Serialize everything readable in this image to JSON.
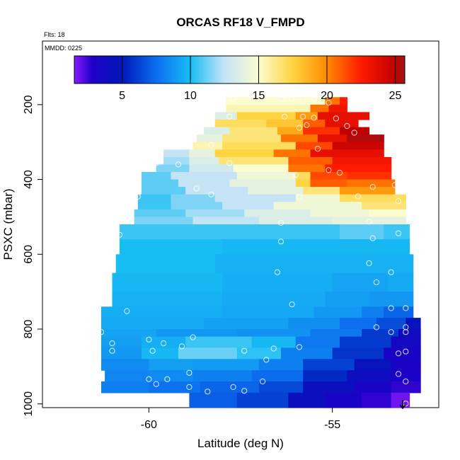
{
  "chart_data": {
    "type": "heatmap",
    "title": "ORCAS RF18 V_FMPD",
    "subtitle": "Flts: 18",
    "annotation": "MMDD: 0225",
    "xlabel": "Latitude (deg N)",
    "ylabel": "PSXC (mbar)",
    "xlim": [
      -62.9,
      -52.1
    ],
    "ylim": [
      1010,
      30
    ],
    "x_ticks": [
      -60,
      -55
    ],
    "x_tick_labels": [
      "-60",
      "-55"
    ],
    "y_ticks": [
      200,
      400,
      600,
      800,
      1000
    ],
    "y_tick_labels": [
      "200",
      "400",
      "600",
      "800",
      "1000"
    ],
    "colorbar": {
      "range": [
        1.5,
        25.7
      ],
      "ticks": [
        5,
        10,
        15,
        20,
        25
      ],
      "tick_labels": [
        "5",
        "10",
        "15",
        "20",
        "25"
      ],
      "stops": [
        {
          "v": 1.5,
          "c": "#8a1aff"
        },
        {
          "v": 2.8,
          "c": "#1e00c8"
        },
        {
          "v": 5.0,
          "c": "#0018b8"
        },
        {
          "v": 7.5,
          "c": "#0b6ff0"
        },
        {
          "v": 10.0,
          "c": "#18bdf4"
        },
        {
          "v": 12.5,
          "c": "#c4e4f6"
        },
        {
          "v": 15.0,
          "c": "#fbfccf"
        },
        {
          "v": 17.5,
          "c": "#ffd440"
        },
        {
          "v": 20.0,
          "c": "#ff8a00"
        },
        {
          "v": 22.5,
          "c": "#ff1a00"
        },
        {
          "v": 25.0,
          "c": "#c00000"
        },
        {
          "v": 25.7,
          "c": "#9e1818"
        }
      ]
    },
    "bands": [
      {
        "p": 180,
        "segments": [
          [
            -57.9,
            -55.2,
            15.0
          ],
          [
            -55.2,
            -54.8,
            20.5
          ],
          [
            -54.8,
            -54.6,
            22.5
          ]
        ]
      },
      {
        "p": 200,
        "segments": [
          [
            -57.9,
            -55.6,
            15.5
          ],
          [
            -55.6,
            -55.1,
            20.5
          ],
          [
            -55.1,
            -54.6,
            23.0
          ]
        ]
      },
      {
        "p": 220,
        "segments": [
          [
            -58.2,
            -57.6,
            13.5
          ],
          [
            -57.6,
            -56.0,
            17.5
          ],
          [
            -56.0,
            -55.4,
            19.5
          ],
          [
            -55.4,
            -54.0,
            23.5
          ]
        ]
      },
      {
        "p": 240,
        "segments": [
          [
            -58.2,
            -56.8,
            17.0
          ],
          [
            -56.8,
            -55.8,
            18.0
          ],
          [
            -55.8,
            -55.2,
            21.0
          ],
          [
            -55.2,
            -54.3,
            23.5
          ]
        ]
      },
      {
        "p": 260,
        "segments": [
          [
            -58.5,
            -57.8,
            13.5
          ],
          [
            -57.8,
            -56.5,
            16.5
          ],
          [
            -56.5,
            -55.8,
            19.0
          ],
          [
            -55.8,
            -54.8,
            22.0
          ],
          [
            -54.8,
            -54.0,
            25.0
          ]
        ]
      },
      {
        "p": 280,
        "segments": [
          [
            -58.7,
            -58.0,
            14.0
          ],
          [
            -58.0,
            -56.4,
            16.5
          ],
          [
            -56.4,
            -55.4,
            20.5
          ],
          [
            -55.4,
            -54.6,
            23.5
          ],
          [
            -54.6,
            -53.6,
            25.3
          ]
        ]
      },
      {
        "p": 300,
        "segments": [
          [
            -58.8,
            -58.0,
            15.5
          ],
          [
            -58.0,
            -56.0,
            17.0
          ],
          [
            -56.0,
            -55.0,
            21.5
          ],
          [
            -55.0,
            -53.6,
            24.5
          ]
        ]
      },
      {
        "p": 320,
        "segments": [
          [
            -59.6,
            -58.9,
            12.5
          ],
          [
            -58.9,
            -58.2,
            14.0
          ],
          [
            -58.2,
            -56.6,
            17.5
          ],
          [
            -56.6,
            -55.6,
            20.5
          ],
          [
            -55.6,
            -53.6,
            23.5
          ]
        ]
      },
      {
        "p": 340,
        "segments": [
          [
            -59.6,
            -58.9,
            12.0
          ],
          [
            -58.9,
            -58.1,
            13.5
          ],
          [
            -58.1,
            -56.2,
            16.5
          ],
          [
            -56.2,
            -55.0,
            21.0
          ],
          [
            -55.0,
            -53.4,
            23.0
          ]
        ]
      },
      {
        "p": 360,
        "segments": [
          [
            -59.8,
            -58.9,
            11.5
          ],
          [
            -58.9,
            -57.7,
            13.0
          ],
          [
            -57.7,
            -56.2,
            15.0
          ],
          [
            -56.2,
            -55.2,
            20.5
          ],
          [
            -55.2,
            -53.4,
            22.5
          ]
        ]
      },
      {
        "p": 380,
        "segments": [
          [
            -60.2,
            -59.4,
            11.0
          ],
          [
            -59.4,
            -57.6,
            12.5
          ],
          [
            -57.6,
            -56.0,
            14.5
          ],
          [
            -56.0,
            -55.6,
            17.0
          ],
          [
            -55.6,
            -54.6,
            21.5
          ],
          [
            -54.6,
            -53.4,
            22.0
          ]
        ]
      },
      {
        "p": 400,
        "segments": [
          [
            -60.2,
            -59.2,
            11.0
          ],
          [
            -59.2,
            -57.8,
            12.5
          ],
          [
            -57.8,
            -56.0,
            14.0
          ],
          [
            -56.0,
            -55.6,
            17.5
          ],
          [
            -55.6,
            -54.6,
            21.0
          ],
          [
            -54.6,
            -53.3,
            20.5
          ]
        ]
      },
      {
        "p": 420,
        "segments": [
          [
            -60.2,
            -59.0,
            11.0
          ],
          [
            -59.0,
            -57.3,
            12.5
          ],
          [
            -57.3,
            -55.8,
            14.0
          ],
          [
            -55.8,
            -54.8,
            16.5
          ],
          [
            -54.8,
            -53.3,
            19.5
          ]
        ]
      },
      {
        "p": 440,
        "segments": [
          [
            -60.3,
            -59.4,
            10.5
          ],
          [
            -59.4,
            -58.2,
            11.5
          ],
          [
            -58.2,
            -56.0,
            12.5
          ],
          [
            -56.0,
            -54.8,
            14.5
          ],
          [
            -54.8,
            -53.0,
            17.0
          ]
        ]
      },
      {
        "p": 460,
        "segments": [
          [
            -60.3,
            -59.4,
            10.5
          ],
          [
            -59.4,
            -58.0,
            11.5
          ],
          [
            -58.0,
            -56.6,
            12.5
          ],
          [
            -56.6,
            -54.2,
            14.5
          ],
          [
            -54.2,
            -53.0,
            16.5
          ]
        ]
      },
      {
        "p": 480,
        "segments": [
          [
            -60.4,
            -59.0,
            11.0
          ],
          [
            -59.0,
            -57.4,
            12.0
          ],
          [
            -57.4,
            -55.6,
            13.5
          ],
          [
            -55.6,
            -54.0,
            14.5
          ],
          [
            -54.0,
            -53.0,
            15.0
          ]
        ]
      },
      {
        "p": 500,
        "segments": [
          [
            -60.4,
            -58.8,
            11.5
          ],
          [
            -58.8,
            -57.0,
            12.5
          ],
          [
            -57.0,
            -55.0,
            13.5
          ],
          [
            -55.0,
            -53.0,
            14.0
          ]
        ]
      },
      {
        "p": 520,
        "segments": [
          [
            -60.8,
            -59.2,
            10.5
          ],
          [
            -59.2,
            -57.0,
            10.5
          ],
          [
            -57.0,
            -54.8,
            10.5
          ],
          [
            -54.8,
            -53.6,
            11.0
          ],
          [
            -53.6,
            -52.9,
            10.5
          ]
        ]
      },
      {
        "p": 560,
        "segments": [
          [
            -60.8,
            -58.0,
            10.0
          ],
          [
            -58.0,
            -55.0,
            9.8
          ],
          [
            -55.0,
            -52.9,
            9.8
          ]
        ]
      },
      {
        "p": 600,
        "segments": [
          [
            -60.9,
            -58.2,
            10.0
          ],
          [
            -58.2,
            -55.5,
            9.6
          ],
          [
            -55.5,
            -52.8,
            9.6
          ]
        ]
      },
      {
        "p": 650,
        "segments": [
          [
            -61.0,
            -58.0,
            9.8
          ],
          [
            -58.0,
            -55.0,
            9.5
          ],
          [
            -55.0,
            -53.5,
            9.2
          ],
          [
            -53.5,
            -52.8,
            9.4
          ]
        ]
      },
      {
        "p": 700,
        "segments": [
          [
            -61.0,
            -58.0,
            9.6
          ],
          [
            -58.0,
            -55.2,
            9.4
          ],
          [
            -55.2,
            -54.0,
            9.0
          ],
          [
            -54.0,
            -52.8,
            8.8
          ]
        ]
      },
      {
        "p": 740,
        "segments": [
          [
            -61.3,
            -58.0,
            9.5
          ],
          [
            -58.0,
            -55.5,
            9.3
          ],
          [
            -55.5,
            -54.2,
            8.8
          ],
          [
            -54.2,
            -53.6,
            8.0
          ],
          [
            -53.6,
            -52.8,
            7.2
          ]
        ]
      },
      {
        "p": 770,
        "segments": [
          [
            -61.3,
            -58.5,
            9.4
          ],
          [
            -58.5,
            -56.2,
            9.1
          ],
          [
            -56.2,
            -54.8,
            8.5
          ],
          [
            -54.8,
            -53.8,
            7.5
          ],
          [
            -53.8,
            -53.0,
            6.5
          ],
          [
            -53.0,
            -52.6,
            4.5
          ]
        ]
      },
      {
        "p": 800,
        "segments": [
          [
            -61.3,
            -59.8,
            9.2
          ],
          [
            -59.8,
            -57.6,
            8.8
          ],
          [
            -57.6,
            -55.6,
            8.6
          ],
          [
            -55.6,
            -54.2,
            7.8
          ],
          [
            -54.2,
            -53.2,
            6.0
          ],
          [
            -53.2,
            -52.6,
            3.8
          ]
        ]
      },
      {
        "p": 820,
        "segments": [
          [
            -61.3,
            -60.2,
            9.0
          ],
          [
            -60.2,
            -59.0,
            9.5
          ],
          [
            -59.0,
            -57.2,
            10.5
          ],
          [
            -57.2,
            -56.0,
            9.8
          ],
          [
            -56.0,
            -54.8,
            7.8
          ],
          [
            -54.8,
            -53.4,
            6.0
          ],
          [
            -53.4,
            -52.6,
            3.5
          ]
        ]
      },
      {
        "p": 850,
        "segments": [
          [
            -61.3,
            -60.2,
            8.8
          ],
          [
            -60.2,
            -59.2,
            9.8
          ],
          [
            -59.2,
            -57.6,
            11.2
          ],
          [
            -57.6,
            -56.4,
            10.3
          ],
          [
            -56.4,
            -55.0,
            8.0
          ],
          [
            -55.0,
            -53.6,
            5.8
          ],
          [
            -53.6,
            -52.6,
            3.2
          ]
        ]
      },
      {
        "p": 880,
        "segments": [
          [
            -61.3,
            -60.0,
            8.4
          ],
          [
            -60.0,
            -58.8,
            9.0
          ],
          [
            -58.8,
            -57.0,
            8.9
          ],
          [
            -57.0,
            -55.8,
            8.0
          ],
          [
            -55.8,
            -54.4,
            6.2
          ],
          [
            -54.4,
            -53.4,
            4.5
          ],
          [
            -53.4,
            -52.6,
            3.2
          ]
        ]
      },
      {
        "p": 910,
        "segments": [
          [
            -61.2,
            -60.0,
            8.2
          ],
          [
            -60.0,
            -58.8,
            8.4
          ],
          [
            -58.8,
            -57.2,
            8.0
          ],
          [
            -57.2,
            -55.8,
            7.4
          ],
          [
            -55.8,
            -54.6,
            5.5
          ],
          [
            -54.6,
            -53.4,
            4.0
          ],
          [
            -53.4,
            -52.6,
            3.0
          ]
        ]
      },
      {
        "p": 940,
        "segments": [
          [
            -61.3,
            -60.0,
            8.0
          ],
          [
            -60.0,
            -58.6,
            7.6
          ],
          [
            -58.6,
            -57.0,
            7.2
          ],
          [
            -57.0,
            -55.8,
            6.4
          ],
          [
            -55.8,
            -54.4,
            4.2
          ],
          [
            -54.4,
            -53.4,
            3.2
          ],
          [
            -53.4,
            -52.6,
            2.6
          ]
        ]
      },
      {
        "p": 970,
        "segments": [
          [
            -58.9,
            -57.6,
            7.0
          ],
          [
            -57.6,
            -56.2,
            6.2
          ],
          [
            -56.2,
            -55.2,
            4.2
          ],
          [
            -55.2,
            -54.2,
            3.2
          ],
          [
            -54.2,
            -53.4,
            2.6
          ],
          [
            -53.4,
            -52.9,
            1.8
          ]
        ]
      },
      {
        "p": 1010
      }
    ],
    "data_points": [
      [
        -57.7,
        185
      ],
      [
        -57.2,
        185
      ],
      [
        -56.9,
        185
      ],
      [
        -56.4,
        185
      ],
      [
        -56.1,
        185
      ],
      [
        -55.8,
        190
      ],
      [
        -55.5,
        185
      ],
      [
        -55.1,
        195
      ],
      [
        -57.8,
        232
      ],
      [
        -56.3,
        232
      ],
      [
        -55.8,
        232
      ],
      [
        -55.5,
        235
      ],
      [
        -54.9,
        237
      ],
      [
        -55.9,
        262
      ],
      [
        -55.7,
        255
      ],
      [
        -54.6,
        257
      ],
      [
        -54.4,
        275
      ],
      [
        -58.3,
        308
      ],
      [
        -55.4,
        318
      ],
      [
        -57.8,
        356
      ],
      [
        -59.8,
        356
      ],
      [
        -59.2,
        360
      ],
      [
        -55.1,
        375
      ],
      [
        -54.8,
        382
      ],
      [
        -56.0,
        388
      ],
      [
        -58.7,
        424
      ],
      [
        -58.3,
        440
      ],
      [
        -55.9,
        446
      ],
      [
        -54.3,
        445
      ],
      [
        -53.9,
        420
      ],
      [
        -53.3,
        415
      ],
      [
        -53.2,
        458
      ],
      [
        -60.3,
        446
      ],
      [
        -56.4,
        516
      ],
      [
        -54.0,
        513
      ],
      [
        -53.2,
        544
      ],
      [
        -60.8,
        548
      ],
      [
        -53.9,
        557
      ],
      [
        -56.4,
        566
      ],
      [
        -61.1,
        648
      ],
      [
        -56.5,
        648
      ],
      [
        -54.0,
        624
      ],
      [
        -53.4,
        648
      ],
      [
        -53.8,
        675
      ],
      [
        -56.1,
        734
      ],
      [
        -53.4,
        744
      ],
      [
        -53.0,
        744
      ],
      [
        -60.6,
        752
      ],
      [
        -53.8,
        795
      ],
      [
        -53.4,
        808
      ],
      [
        -53.0,
        795
      ],
      [
        -53.0,
        808
      ],
      [
        -60.0,
        828
      ],
      [
        -58.8,
        822
      ],
      [
        -55.9,
        848
      ],
      [
        -56.6,
        852
      ],
      [
        -57.4,
        858
      ],
      [
        -59.6,
        838
      ],
      [
        -59.1,
        846
      ],
      [
        -59.9,
        858
      ],
      [
        -61.0,
        858
      ],
      [
        -61.3,
        808
      ],
      [
        -61.0,
        838
      ],
      [
        -56.8,
        882
      ],
      [
        -56.9,
        940
      ],
      [
        -60.0,
        934
      ],
      [
        -59.8,
        947
      ],
      [
        -58.9,
        917
      ],
      [
        -58.9,
        955
      ],
      [
        -57.4,
        965
      ],
      [
        -61.4,
        930
      ],
      [
        -61.5,
        948
      ],
      [
        -61.6,
        924
      ],
      [
        -61.8,
        948
      ],
      [
        -53.2,
        865
      ],
      [
        -53.0,
        860
      ],
      [
        -53.2,
        920
      ],
      [
        -53.0,
        940
      ],
      [
        -57.7,
        955
      ],
      [
        -58.4,
        967
      ],
      [
        -59.5,
        934
      ],
      [
        -53.0,
        999
      ]
    ]
  }
}
